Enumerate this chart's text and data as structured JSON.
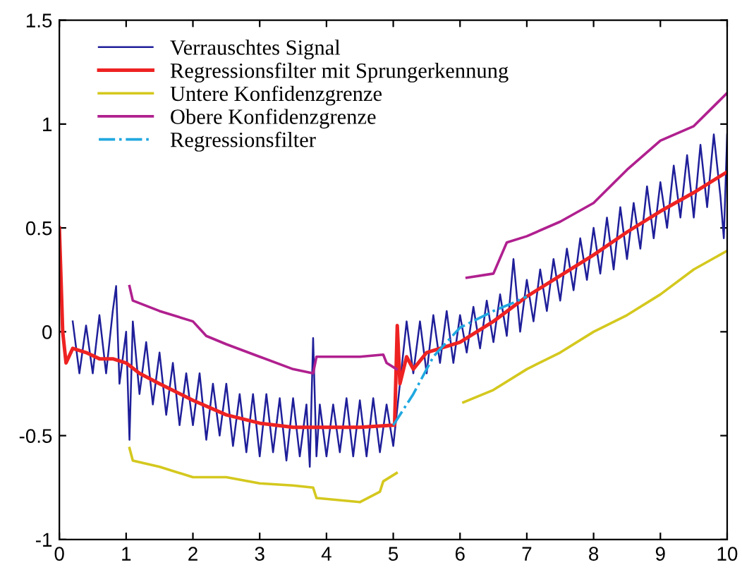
{
  "chart_data": {
    "type": "line",
    "xlim": [
      0,
      10
    ],
    "ylim": [
      -1,
      1.5
    ],
    "xticks": [
      0,
      1,
      2,
      3,
      4,
      5,
      6,
      7,
      8,
      9,
      10
    ],
    "yticks": [
      -1,
      -0.5,
      0,
      0.5,
      1,
      1.5
    ],
    "grid": false,
    "legend": "top left",
    "series": [
      {
        "name": "Verrauschtes Signal",
        "color": "#1f1f9a",
        "x": [
          0.2,
          0.3,
          0.4,
          0.5,
          0.6,
          0.7,
          0.8,
          0.85,
          0.9,
          1.0,
          1.05,
          1.1,
          1.2,
          1.3,
          1.4,
          1.5,
          1.6,
          1.7,
          1.8,
          1.9,
          2.0,
          2.1,
          2.2,
          2.3,
          2.4,
          2.5,
          2.6,
          2.7,
          2.8,
          2.9,
          3.0,
          3.1,
          3.2,
          3.3,
          3.4,
          3.5,
          3.6,
          3.7,
          3.75,
          3.8,
          3.85,
          3.9,
          4.0,
          4.1,
          4.2,
          4.3,
          4.4,
          4.5,
          4.6,
          4.7,
          4.8,
          4.9,
          5.0,
          5.2,
          5.3,
          5.4,
          5.5,
          5.6,
          5.7,
          5.8,
          5.9,
          6.0,
          6.1,
          6.2,
          6.3,
          6.4,
          6.5,
          6.6,
          6.7,
          6.8,
          6.9,
          7.0,
          7.1,
          7.2,
          7.3,
          7.4,
          7.5,
          7.6,
          7.7,
          7.8,
          7.9,
          8.0,
          8.1,
          8.2,
          8.3,
          8.4,
          8.5,
          8.6,
          8.7,
          8.8,
          8.9,
          9.0,
          9.1,
          9.2,
          9.3,
          9.4,
          9.5,
          9.6,
          9.7,
          9.8,
          9.9,
          9.95,
          10.0
        ],
        "values": [
          0.05,
          -0.2,
          0.03,
          -0.2,
          0.08,
          -0.2,
          0.1,
          0.22,
          -0.25,
          0.0,
          -0.52,
          0.05,
          -0.3,
          -0.05,
          -0.35,
          -0.1,
          -0.4,
          -0.15,
          -0.45,
          -0.2,
          -0.45,
          -0.2,
          -0.52,
          -0.25,
          -0.5,
          -0.25,
          -0.55,
          -0.3,
          -0.58,
          -0.3,
          -0.6,
          -0.3,
          -0.58,
          -0.32,
          -0.62,
          -0.32,
          -0.6,
          -0.35,
          -0.65,
          -0.03,
          -0.6,
          -0.35,
          -0.6,
          -0.35,
          -0.58,
          -0.32,
          -0.6,
          -0.33,
          -0.6,
          -0.32,
          -0.58,
          -0.35,
          -0.55,
          0.05,
          -0.2,
          0.05,
          -0.2,
          0.08,
          -0.15,
          0.1,
          -0.15,
          0.08,
          -0.1,
          0.12,
          -0.08,
          0.15,
          -0.05,
          0.18,
          -0.02,
          0.35,
          0.0,
          0.25,
          0.05,
          0.3,
          0.1,
          0.35,
          0.15,
          0.4,
          0.2,
          0.45,
          0.25,
          0.5,
          0.28,
          0.55,
          0.3,
          0.6,
          0.35,
          0.62,
          0.4,
          0.7,
          0.45,
          0.72,
          0.5,
          0.8,
          0.55,
          0.85,
          0.55,
          0.9,
          0.6,
          0.95,
          0.65,
          0.45,
          0.95
        ]
      },
      {
        "name": "Regressionsfilter mit Sprungerkennung",
        "color": "#ee2222",
        "x": [
          0,
          0.05,
          0.1,
          0.2,
          0.4,
          0.6,
          0.8,
          1,
          1.2,
          1.5,
          2,
          2.5,
          3,
          3.5,
          4,
          4.5,
          5,
          5.02,
          5.06,
          5.1,
          5.2,
          5.3,
          5.5,
          6,
          6.5,
          7,
          7.5,
          8,
          8.5,
          9,
          9.5,
          10
        ],
        "values": [
          0.5,
          0.0,
          -0.15,
          -0.08,
          -0.1,
          -0.13,
          -0.13,
          -0.15,
          -0.2,
          -0.25,
          -0.33,
          -0.4,
          -0.44,
          -0.46,
          -0.46,
          -0.46,
          -0.45,
          -0.45,
          0.03,
          -0.25,
          -0.12,
          -0.18,
          -0.1,
          -0.05,
          0.05,
          0.17,
          0.27,
          0.37,
          0.48,
          0.58,
          0.67,
          0.77
        ]
      },
      {
        "name": "Untere Konfidenzgrenze",
        "color": "#d4c81e",
        "x": [
          1.05,
          1.1,
          1.5,
          2,
          2.5,
          3,
          3.5,
          3.8,
          3.85,
          4.5,
          4.8,
          4.85,
          5.05,
          5.06,
          6.05,
          6.5,
          7,
          7.5,
          8,
          8.5,
          9,
          9.5,
          10
        ],
        "values": [
          -0.56,
          -0.62,
          -0.65,
          -0.7,
          -0.7,
          -0.73,
          -0.74,
          -0.75,
          -0.8,
          -0.82,
          -0.77,
          -0.72,
          -0.68,
          null,
          -0.34,
          -0.28,
          -0.18,
          -0.1,
          0.0,
          0.08,
          0.18,
          0.3,
          0.39
        ]
      },
      {
        "name": "Obere Konfidenzgrenze",
        "color": "#b0208f",
        "x": [
          1.05,
          1.1,
          1.5,
          2,
          2.2,
          2.5,
          3,
          3.5,
          3.8,
          3.85,
          4.5,
          4.85,
          4.9,
          5.05,
          5.06,
          6.1,
          6.5,
          6.7,
          7,
          7.5,
          8,
          8.5,
          9,
          9.5,
          10
        ],
        "values": [
          0.22,
          0.15,
          0.1,
          0.05,
          -0.02,
          -0.06,
          -0.12,
          -0.18,
          -0.2,
          -0.12,
          -0.12,
          -0.11,
          -0.15,
          -0.18,
          null,
          0.26,
          0.28,
          0.43,
          0.46,
          0.53,
          0.62,
          0.78,
          0.92,
          0.99,
          1.15
        ]
      },
      {
        "name": "Regressionsfilter",
        "color": "#20a8e0",
        "line_style": "dashed",
        "x": [
          5.0,
          5.3,
          5.6,
          6.0,
          6.5,
          6.8,
          7.0
        ],
        "values": [
          -0.45,
          -0.3,
          -0.12,
          0.02,
          0.1,
          0.14,
          0.17
        ]
      }
    ]
  }
}
